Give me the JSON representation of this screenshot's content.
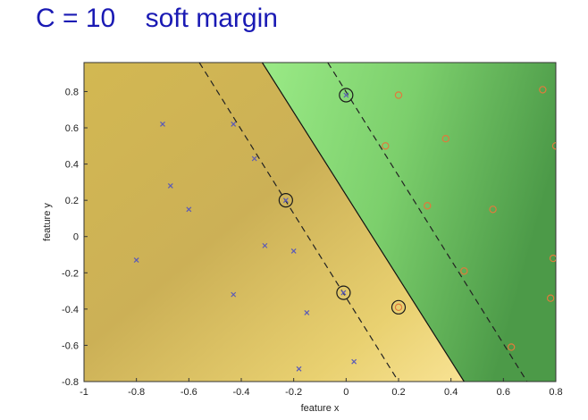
{
  "slide": {
    "title": "C = 10    soft margin"
  },
  "chart_data": {
    "type": "scatter",
    "title": "C = 10    soft margin",
    "xlabel": "feature x",
    "ylabel": "feature y",
    "xlim": [
      -1,
      0.8
    ],
    "ylim": [
      -0.8,
      0.96
    ],
    "xticks": [
      -1,
      -0.8,
      -0.6,
      -0.4,
      -0.2,
      0,
      0.2,
      0.4,
      0.6,
      0.8
    ],
    "xtick_labels": [
      "-1",
      "-0.8",
      "-0.6",
      "-0.4",
      "-0.2",
      "0",
      "0.2",
      "0.4",
      "0.6",
      "0.8"
    ],
    "yticks": [
      -0.8,
      -0.6,
      -0.4,
      -0.2,
      0,
      0.2,
      0.4,
      0.6,
      0.8
    ],
    "ytick_labels": [
      "-0.8",
      "-0.6",
      "-0.4",
      "-0.2",
      "0",
      "0.2",
      "0.4",
      "0.6",
      "0.8"
    ],
    "grid": false,
    "decision_boundary": {
      "x_at_top": -0.32,
      "x_at_bottom": 0.45
    },
    "margin_lines": [
      {
        "x_at_top": -0.56,
        "x_at_bottom": 0.2
      },
      {
        "x_at_top": -0.07,
        "x_at_bottom": 0.69
      }
    ],
    "regions": {
      "negative_color": "#f3da7f",
      "positive_color": "#8ae27b",
      "boundary_color": "#111111"
    },
    "series": [
      {
        "marker": "x",
        "color": "#5a5ab8",
        "points": [
          [
            -0.7,
            0.62
          ],
          [
            -0.43,
            0.62
          ],
          [
            -0.67,
            0.28
          ],
          [
            -0.6,
            0.15
          ],
          [
            -0.35,
            0.43
          ],
          [
            -0.23,
            0.2
          ],
          [
            -0.8,
            -0.13
          ],
          [
            -0.31,
            -0.05
          ],
          [
            -0.2,
            -0.08
          ],
          [
            -0.43,
            -0.32
          ],
          [
            -0.15,
            -0.42
          ],
          [
            -0.18,
            -0.73
          ],
          [
            0.03,
            -0.69
          ],
          [
            0.0,
            0.78
          ],
          [
            -0.01,
            -0.31
          ]
        ]
      },
      {
        "marker": "o",
        "color": "#e07a3c",
        "points": [
          [
            0.2,
            0.78
          ],
          [
            0.75,
            0.81
          ],
          [
            0.15,
            0.5
          ],
          [
            0.38,
            0.54
          ],
          [
            0.8,
            0.5
          ],
          [
            0.31,
            0.17
          ],
          [
            0.56,
            0.15
          ],
          [
            0.45,
            -0.19
          ],
          [
            0.79,
            -0.12
          ],
          [
            0.78,
            -0.34
          ],
          [
            0.2,
            -0.39
          ],
          [
            0.63,
            -0.61
          ]
        ]
      }
    ],
    "support_vectors": [
      [
        0.0,
        0.78
      ],
      [
        -0.23,
        0.2
      ],
      [
        -0.01,
        -0.31
      ],
      [
        0.2,
        -0.39
      ]
    ]
  }
}
